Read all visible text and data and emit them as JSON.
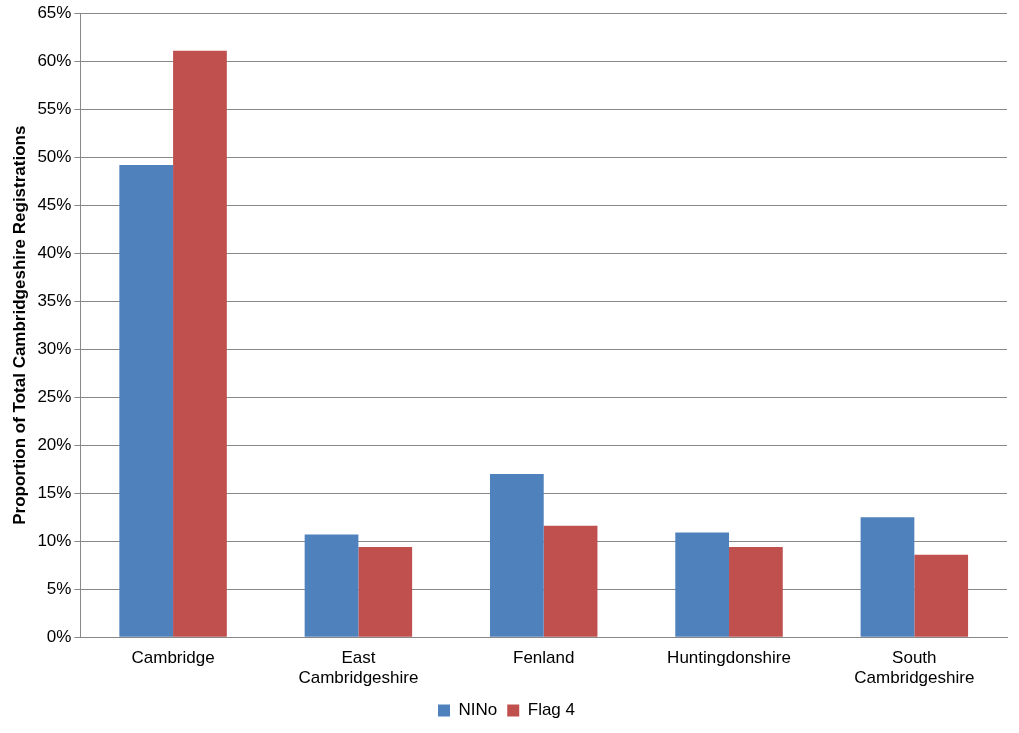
{
  "chart_data": {
    "type": "bar",
    "ylabel": "Proportion of Total Cambridgeshire Registrations",
    "categories": [
      "Cambridge",
      "East Cambridgeshire",
      "Fenland",
      "Huntingdonshire",
      "South Cambridgeshire"
    ],
    "series": [
      {
        "name": "NINo",
        "color": "#4f81bd",
        "values": [
          49.2,
          10.7,
          17.0,
          10.9,
          12.5
        ]
      },
      {
        "name": "Flag 4",
        "color": "#c0504d",
        "values": [
          61.1,
          9.4,
          11.6,
          9.4,
          8.6
        ]
      }
    ],
    "ylim": [
      0,
      65
    ],
    "yticks": [
      {
        "value": 0,
        "label": "0%"
      },
      {
        "value": 5,
        "label": "5%"
      },
      {
        "value": 10,
        "label": "10%"
      },
      {
        "value": 15,
        "label": "15%"
      },
      {
        "value": 20,
        "label": "20%"
      },
      {
        "value": 25,
        "label": "25%"
      },
      {
        "value": 30,
        "label": "30%"
      },
      {
        "value": 35,
        "label": "35%"
      },
      {
        "value": 40,
        "label": "40%"
      },
      {
        "value": 45,
        "label": "45%"
      },
      {
        "value": 50,
        "label": "50%"
      },
      {
        "value": 55,
        "label": "55%"
      },
      {
        "value": 60,
        "label": "60%"
      },
      {
        "value": 65,
        "label": "65%"
      }
    ],
    "grid": "y",
    "legend": "bottom"
  }
}
